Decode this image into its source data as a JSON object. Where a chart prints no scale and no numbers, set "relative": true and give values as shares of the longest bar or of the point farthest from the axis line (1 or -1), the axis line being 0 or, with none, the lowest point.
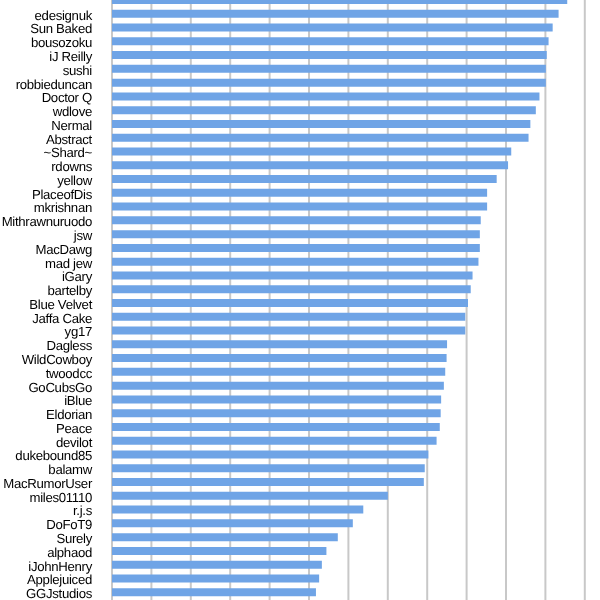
{
  "chart_data": {
    "type": "bar",
    "orientation": "horizontal",
    "relative": true,
    "grid": "x",
    "color": "#6fa4e6",
    "categories": [
      null,
      "edesignuk",
      "Sun Baked",
      "bousozoku",
      "iJ Reilly",
      "sushi",
      "robbieduncan",
      "Doctor Q",
      "wdlove",
      "Nermal",
      "Abstract",
      "~Shard~",
      "rdowns",
      "yellow",
      "PlaceofDis",
      "mkrishnan",
      "Mithrawnuruodo",
      "jsw",
      "MacDawg",
      "mad jew",
      "iGary",
      "bartelby",
      "Blue Velvet",
      "Jaffa Cake",
      "yg17",
      "Dagless",
      "WildCowboy",
      "twoodcc",
      "GoCubsGo",
      "iBlue",
      "Eldorian",
      "Peace",
      "devilot",
      "dukebound85",
      "balamw",
      "MacRumorUser",
      "miles01110",
      "r.j.s",
      "DoFoT9",
      "Surely",
      "alphaod",
      "iJohnHenry",
      "Applejuiced",
      "GGJstudios"
    ],
    "values": [
      1,
      0.981,
      0.968,
      0.959,
      0.955,
      0.953,
      0.953,
      0.939,
      0.931,
      0.919,
      0.915,
      0.877,
      0.87,
      0.845,
      0.824,
      0.824,
      0.81,
      0.808,
      0.808,
      0.805,
      0.792,
      0.788,
      0.782,
      0.776,
      0.776,
      0.736,
      0.735,
      0.732,
      0.729,
      0.723,
      0.722,
      0.72,
      0.713,
      0.695,
      0.687,
      0.685,
      0.606,
      0.552,
      0.529,
      0.496,
      0.471,
      0.461,
      0.455,
      0.448
    ]
  }
}
